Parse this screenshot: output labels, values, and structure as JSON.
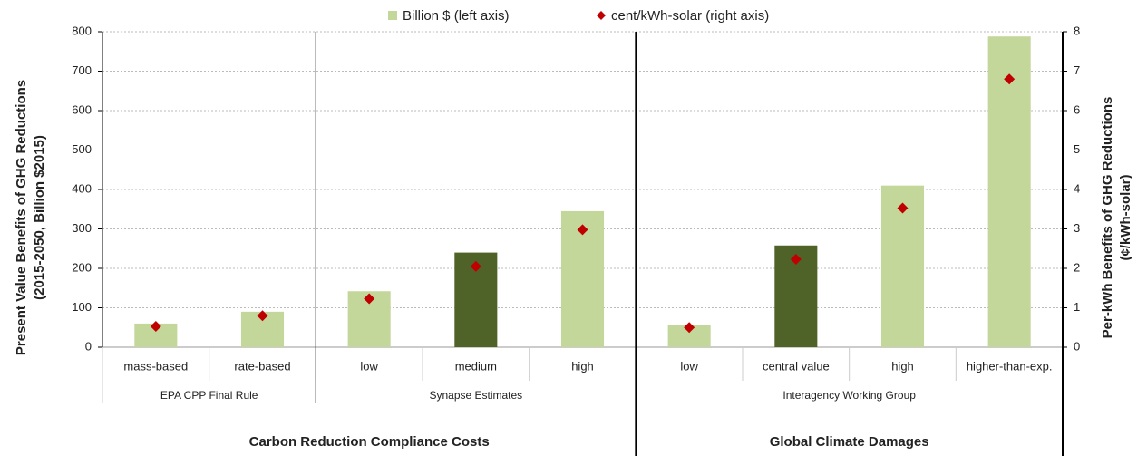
{
  "chart_data": {
    "type": "bar",
    "ylabel": [
      "Present Value Benefits of GHG Reductions",
      "(2015-2050, Billion $2015)"
    ],
    "y2label": [
      "Per-kWh Benefits of GHG Reductions",
      "(¢/kWh-solar)"
    ],
    "groups": [
      {
        "label": "Carbon Reduction Compliance Costs",
        "subgroups": [
          {
            "label": "EPA CPP Final Rule",
            "categories": [
              "mass-based",
              "rate-based"
            ]
          },
          {
            "label": "Synapse Estimates",
            "categories": [
              "low",
              "medium",
              "high"
            ]
          }
        ]
      },
      {
        "label": "Global Climate Damages",
        "subgroups": [
          {
            "label": "Interagency Working Group",
            "categories": [
              "low",
              "central value",
              "high",
              "higher-than-exp."
            ]
          }
        ]
      }
    ],
    "series": [
      {
        "name": "Billion $ (left axis)",
        "type": "bar",
        "color": "#c4d79b",
        "colors": [
          "#c4d79b",
          "#c4d79b",
          "#c4d79b",
          "#4f6228",
          "#c4d79b",
          "#c4d79b",
          "#4f6228",
          "#c4d79b",
          "#c4d79b"
        ],
        "values": [
          60,
          90,
          142,
          240,
          345,
          57,
          258,
          410,
          788
        ]
      },
      {
        "name": "cent/kWh-solar (right axis)",
        "type": "scatter",
        "color": "#c00000",
        "axis": "y2",
        "values": [
          0.53,
          0.8,
          1.23,
          2.05,
          2.98,
          0.5,
          2.23,
          3.53,
          6.8
        ]
      }
    ],
    "ylim": [
      0,
      800
    ],
    "yticks": [
      0,
      100,
      200,
      300,
      400,
      500,
      600,
      700,
      800
    ],
    "y2lim": [
      0,
      8
    ],
    "y2ticks": [
      0,
      1,
      2,
      3,
      4,
      5,
      6,
      7,
      8
    ],
    "grid": true
  }
}
